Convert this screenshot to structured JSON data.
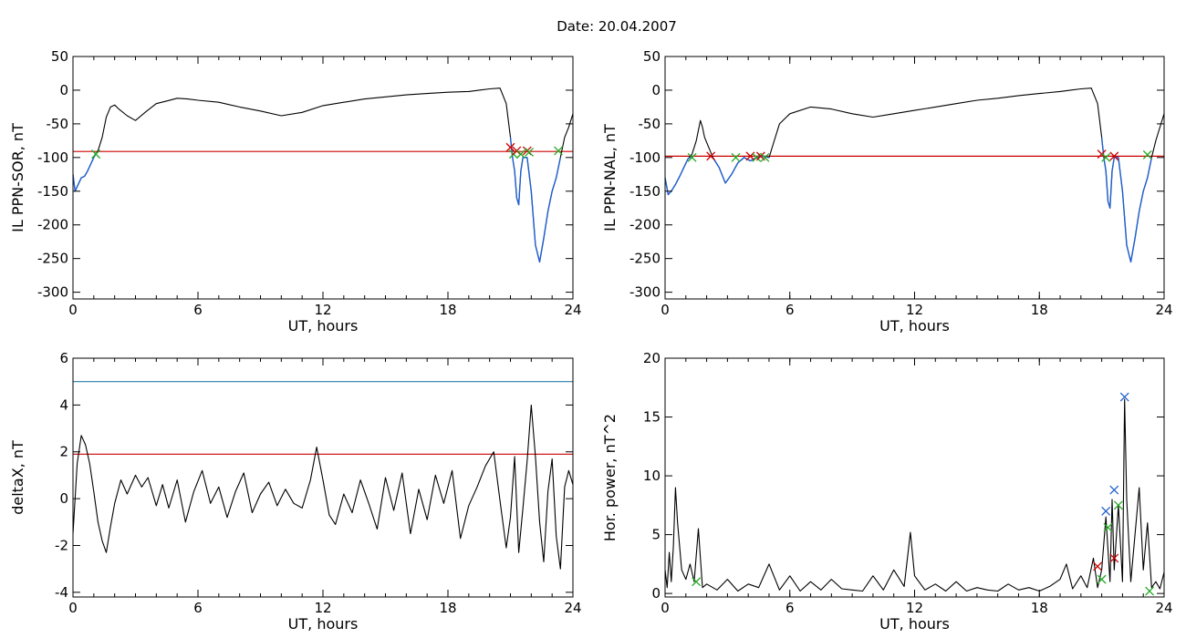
{
  "title": "Date:  20.04.2007",
  "chart_data": [
    {
      "type": "line",
      "title": "",
      "xlabel": "UT, hours",
      "ylabel": "IL PPN-SOR, nT",
      "xlim": [
        0,
        24
      ],
      "ylim": [
        -310,
        50
      ],
      "xticks": [
        0,
        6,
        12,
        18,
        24
      ],
      "yticks": [
        -300,
        -250,
        -200,
        -150,
        -100,
        -50,
        0,
        50
      ],
      "grid": false,
      "threshold": {
        "value": -91,
        "color": "#cc0000"
      },
      "series": [
        {
          "color": "#000000",
          "x": [
            0,
            0.1,
            0.25,
            0.4,
            0.55,
            0.7,
            0.85,
            1.0,
            1.2,
            1.4,
            1.6,
            1.8,
            2.0,
            2.2,
            2.6,
            3.0,
            3.5,
            4.0,
            4.5,
            5.0,
            5.5,
            6.0,
            7.0,
            8.0,
            9.0,
            10.0,
            11.0,
            12.0,
            13.0,
            14.0,
            15.0,
            16.0,
            17.0,
            18.0,
            19.0,
            19.5,
            20.0,
            20.5,
            20.8,
            21.0,
            21.1,
            21.2,
            21.3,
            21.4,
            21.5,
            21.6,
            21.8,
            22.0,
            22.2,
            22.4,
            22.6,
            22.8,
            23.0,
            23.2,
            23.4,
            23.6,
            23.8,
            24.0
          ],
          "y": [
            -125,
            -150,
            -140,
            -130,
            -128,
            -120,
            -110,
            -100,
            -90,
            -70,
            -40,
            -25,
            -22,
            -28,
            -38,
            -45,
            -32,
            -20,
            -16,
            -12,
            -13,
            -15,
            -18,
            -25,
            -31,
            -38,
            -33,
            -23,
            -18,
            -13,
            -10,
            -7,
            -5,
            -3,
            -2,
            0,
            2,
            3,
            -20,
            -70,
            -100,
            -120,
            -160,
            -170,
            -120,
            -100,
            -100,
            -150,
            -230,
            -255,
            -220,
            -180,
            -150,
            -130,
            -100,
            -70,
            -55,
            -35
          ]
        },
        {
          "color": "#1f5fcf",
          "x": [
            0,
            0.1,
            0.25,
            0.4,
            0.55,
            0.7,
            0.85,
            1.0,
            1.1
          ],
          "y": [
            -125,
            -150,
            -140,
            -130,
            -128,
            -120,
            -110,
            -100,
            -93
          ]
        },
        {
          "color": "#1f5fcf",
          "x": [
            21.0,
            21.1,
            21.2,
            21.3,
            21.4,
            21.5,
            21.6,
            21.8,
            22.0,
            22.2,
            22.4,
            22.6,
            22.8,
            23.0,
            23.2,
            23.4
          ],
          "y": [
            -70,
            -100,
            -120,
            -160,
            -170,
            -120,
            -100,
            -100,
            -150,
            -230,
            -255,
            -220,
            -180,
            -150,
            -130,
            -100
          ]
        }
      ],
      "markers": [
        {
          "x": 1.1,
          "y": -95,
          "color": "#22aa22"
        },
        {
          "x": 21.0,
          "y": -85,
          "color": "#cc0000"
        },
        {
          "x": 21.15,
          "y": -95,
          "color": "#22aa22"
        },
        {
          "x": 21.3,
          "y": -90,
          "color": "#cc0000"
        },
        {
          "x": 21.5,
          "y": -95,
          "color": "#22aa22"
        },
        {
          "x": 21.8,
          "y": -90,
          "color": "#cc0000"
        },
        {
          "x": 21.9,
          "y": -92,
          "color": "#22aa22"
        },
        {
          "x": 23.3,
          "y": -90,
          "color": "#22aa22"
        }
      ]
    },
    {
      "type": "line",
      "title": "",
      "xlabel": "UT, hours",
      "ylabel": "IL PPN-NAL, nT",
      "xlim": [
        0,
        24
      ],
      "ylim": [
        -310,
        50
      ],
      "xticks": [
        0,
        6,
        12,
        18,
        24
      ],
      "yticks": [
        -300,
        -250,
        -200,
        -150,
        -100,
        -50,
        0,
        50
      ],
      "grid": false,
      "threshold": {
        "value": -98,
        "color": "#cc0000"
      },
      "series": [
        {
          "color": "#000000",
          "x": [
            0,
            0.15,
            0.3,
            0.5,
            0.7,
            0.9,
            1.1,
            1.3,
            1.5,
            1.7,
            1.8,
            1.9,
            2.1,
            2.3,
            2.6,
            2.9,
            3.2,
            3.5,
            3.8,
            4.1,
            4.4,
            4.7,
            5.0,
            5.2,
            5.5,
            6.0,
            7.0,
            8.0,
            9.0,
            10.0,
            11.0,
            12.0,
            13.0,
            14.0,
            15.0,
            16.0,
            17.0,
            18.0,
            19.0,
            19.5,
            20.0,
            20.5,
            20.8,
            21.0,
            21.1,
            21.2,
            21.3,
            21.4,
            21.5,
            21.6,
            21.8,
            22.0,
            22.2,
            22.4,
            22.6,
            22.8,
            23.0,
            23.2,
            23.4,
            23.6,
            23.8,
            24.0
          ],
          "y": [
            -130,
            -155,
            -150,
            -140,
            -128,
            -115,
            -102,
            -95,
            -75,
            -45,
            -55,
            -70,
            -85,
            -100,
            -115,
            -138,
            -125,
            -108,
            -100,
            -105,
            -100,
            -98,
            -100,
            -80,
            -50,
            -35,
            -25,
            -28,
            -35,
            -40,
            -35,
            -30,
            -25,
            -20,
            -15,
            -12,
            -8,
            -5,
            -2,
            0,
            2,
            3,
            -20,
            -70,
            -100,
            -120,
            -165,
            -175,
            -120,
            -100,
            -100,
            -150,
            -230,
            -255,
            -220,
            -180,
            -150,
            -130,
            -100,
            -75,
            -55,
            -35
          ]
        },
        {
          "color": "#1f5fcf",
          "x": [
            0,
            0.15,
            0.3,
            0.5,
            0.7,
            0.9,
            1.1,
            1.3
          ],
          "y": [
            -130,
            -155,
            -150,
            -140,
            -128,
            -115,
            -102,
            -98
          ]
        },
        {
          "color": "#1f5fcf",
          "x": [
            2.3,
            2.6,
            2.9,
            3.2,
            3.5,
            3.8,
            4.1,
            4.4,
            4.7,
            5.0
          ],
          "y": [
            -100,
            -115,
            -138,
            -125,
            -108,
            -100,
            -105,
            -100,
            -98,
            -100
          ]
        },
        {
          "color": "#1f5fcf",
          "x": [
            21.0,
            21.1,
            21.2,
            21.3,
            21.4,
            21.5,
            21.6,
            21.8,
            22.0,
            22.2,
            22.4,
            22.6,
            22.8,
            23.0,
            23.2,
            23.4
          ],
          "y": [
            -70,
            -100,
            -120,
            -165,
            -175,
            -120,
            -100,
            -100,
            -150,
            -230,
            -255,
            -220,
            -180,
            -150,
            -130,
            -100
          ]
        }
      ],
      "markers": [
        {
          "x": 1.3,
          "y": -100,
          "color": "#22aa22"
        },
        {
          "x": 2.2,
          "y": -98,
          "color": "#cc0000"
        },
        {
          "x": 3.4,
          "y": -100,
          "color": "#22aa22"
        },
        {
          "x": 4.1,
          "y": -98,
          "color": "#cc0000"
        },
        {
          "x": 4.4,
          "y": -100,
          "color": "#22aa22"
        },
        {
          "x": 4.6,
          "y": -98,
          "color": "#cc0000"
        },
        {
          "x": 4.8,
          "y": -100,
          "color": "#22aa22"
        },
        {
          "x": 21.0,
          "y": -95,
          "color": "#cc0000"
        },
        {
          "x": 21.2,
          "y": -100,
          "color": "#22aa22"
        },
        {
          "x": 21.6,
          "y": -98,
          "color": "#cc0000"
        },
        {
          "x": 23.2,
          "y": -96,
          "color": "#22aa22"
        }
      ]
    },
    {
      "type": "line",
      "title": "",
      "xlabel": "UT, hours",
      "ylabel": "deltaX, nT",
      "xlim": [
        0,
        24
      ],
      "ylim": [
        -4.2,
        6
      ],
      "xticks": [
        0,
        6,
        12,
        18,
        24
      ],
      "yticks": [
        -4,
        -2,
        0,
        2,
        4,
        6
      ],
      "grid": false,
      "hlines": [
        {
          "value": 5,
          "color": "#2a7fa8"
        },
        {
          "value": 1.9,
          "color": "#cc0000"
        }
      ],
      "series": [
        {
          "color": "#000000",
          "x": [
            0,
            0.2,
            0.4,
            0.6,
            0.8,
            1.0,
            1.2,
            1.4,
            1.6,
            1.8,
            2.0,
            2.3,
            2.6,
            3.0,
            3.3,
            3.6,
            4.0,
            4.3,
            4.6,
            5.0,
            5.4,
            5.8,
            6.2,
            6.6,
            7.0,
            7.4,
            7.8,
            8.2,
            8.6,
            9.0,
            9.4,
            9.8,
            10.2,
            10.6,
            11.0,
            11.4,
            11.7,
            12.0,
            12.3,
            12.6,
            13.0,
            13.4,
            13.8,
            14.2,
            14.6,
            15.0,
            15.4,
            15.8,
            16.2,
            16.6,
            17.0,
            17.4,
            17.8,
            18.2,
            18.6,
            19.0,
            19.4,
            19.8,
            20.2,
            20.5,
            20.8,
            21.0,
            21.2,
            21.4,
            21.6,
            21.8,
            22.0,
            22.2,
            22.4,
            22.6,
            22.8,
            23.0,
            23.2,
            23.4,
            23.6,
            23.8,
            24.0
          ],
          "y": [
            -1.5,
            1.5,
            2.7,
            2.3,
            1.5,
            0.3,
            -1.0,
            -1.8,
            -2.3,
            -1.2,
            -0.2,
            0.8,
            0.2,
            1.0,
            0.5,
            0.9,
            -0.3,
            0.6,
            -0.4,
            0.8,
            -1.0,
            0.3,
            1.2,
            -0.2,
            0.5,
            -0.8,
            0.3,
            1.1,
            -0.6,
            0.2,
            0.7,
            -0.3,
            0.4,
            -0.2,
            -0.4,
            0.8,
            2.2,
            0.8,
            -0.7,
            -1.1,
            0.2,
            -0.6,
            0.8,
            -0.2,
            -1.3,
            0.9,
            -0.5,
            1.1,
            -1.5,
            0.4,
            -0.9,
            1.0,
            -0.2,
            1.2,
            -1.7,
            -0.3,
            0.5,
            1.4,
            2.0,
            -0.1,
            -2.1,
            -0.8,
            1.8,
            -2.3,
            -0.4,
            1.6,
            4.0,
            1.8,
            -1.0,
            -2.7,
            0.3,
            1.7,
            -1.6,
            -3.0,
            0.5,
            1.2,
            0.6
          ]
        }
      ],
      "markers": []
    },
    {
      "type": "line",
      "title": "",
      "xlabel": "UT, hours",
      "ylabel": "Hor. power, nT^2",
      "xlim": [
        0,
        24
      ],
      "ylim": [
        -0.3,
        20
      ],
      "xticks": [
        0,
        6,
        12,
        18,
        24
      ],
      "yticks": [
        0,
        5,
        10,
        15,
        20
      ],
      "grid": false,
      "series": [
        {
          "color": "#000000",
          "x": [
            0,
            0.1,
            0.2,
            0.3,
            0.4,
            0.5,
            0.6,
            0.8,
            1.0,
            1.2,
            1.4,
            1.6,
            1.8,
            2.0,
            2.5,
            3.0,
            3.5,
            4.0,
            4.5,
            5.0,
            5.5,
            6.0,
            6.5,
            7.0,
            7.5,
            8.0,
            8.5,
            9.0,
            9.5,
            10.0,
            10.5,
            11.0,
            11.5,
            11.8,
            12.0,
            12.5,
            13.0,
            13.5,
            14.0,
            14.5,
            15.0,
            15.5,
            16.0,
            16.5,
            17.0,
            17.5,
            18.0,
            18.5,
            19.0,
            19.3,
            19.6,
            20.0,
            20.3,
            20.6,
            20.8,
            21.0,
            21.2,
            21.4,
            21.5,
            21.6,
            21.8,
            22.0,
            22.1,
            22.2,
            22.4,
            22.6,
            22.8,
            23.0,
            23.2,
            23.4,
            23.6,
            23.8,
            24.0
          ],
          "y": [
            2,
            0.5,
            3.5,
            1.0,
            4.0,
            9.0,
            6.0,
            2.0,
            1.2,
            2.5,
            1.0,
            5.5,
            0.5,
            0.8,
            0.3,
            1.2,
            0.2,
            0.8,
            0.5,
            2.5,
            0.3,
            1.5,
            0.2,
            1.0,
            0.3,
            1.2,
            0.4,
            0.3,
            0.2,
            1.5,
            0.3,
            2.0,
            0.6,
            5.2,
            1.5,
            0.3,
            0.8,
            0.2,
            1.0,
            0.2,
            0.5,
            0.3,
            0.2,
            0.8,
            0.3,
            0.5,
            0.2,
            0.6,
            1.2,
            2.5,
            0.4,
            1.5,
            0.5,
            3.0,
            0.5,
            2.0,
            6.5,
            1.0,
            8.0,
            2.0,
            7.5,
            1.0,
            16.5,
            8.0,
            1.0,
            5.0,
            9.0,
            2.0,
            6.0,
            0.5,
            1.0,
            0.4,
            1.8
          ]
        }
      ],
      "markers": [
        {
          "x": 1.5,
          "y": 1.0,
          "color": "#22aa22"
        },
        {
          "x": 20.8,
          "y": 2.3,
          "color": "#cc0000"
        },
        {
          "x": 21.0,
          "y": 1.2,
          "color": "#22aa22"
        },
        {
          "x": 21.2,
          "y": 7.0,
          "color": "#1f5fcf"
        },
        {
          "x": 21.3,
          "y": 5.6,
          "color": "#22aa22"
        },
        {
          "x": 21.6,
          "y": 3.0,
          "color": "#cc0000"
        },
        {
          "x": 21.6,
          "y": 8.8,
          "color": "#1f5fcf"
        },
        {
          "x": 21.8,
          "y": 7.5,
          "color": "#22aa22"
        },
        {
          "x": 22.1,
          "y": 16.7,
          "color": "#1f5fcf"
        },
        {
          "x": 23.3,
          "y": 0.2,
          "color": "#22aa22"
        }
      ]
    }
  ]
}
